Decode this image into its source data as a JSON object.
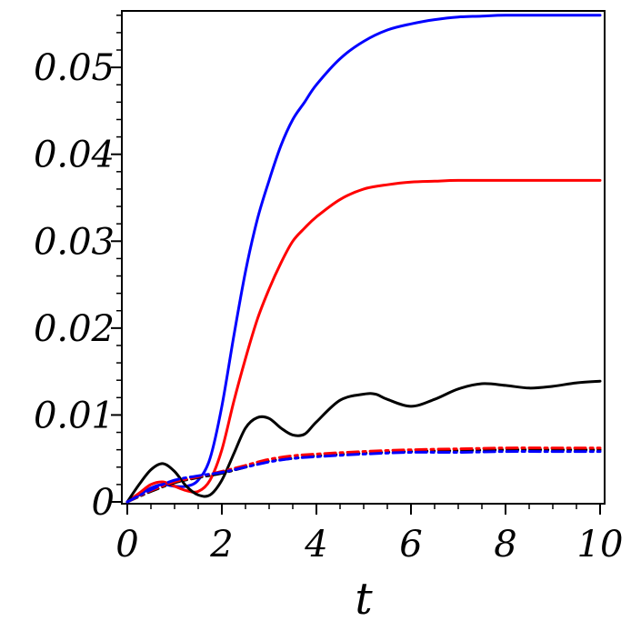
{
  "chart_data": {
    "type": "line",
    "title": "",
    "xlabel": "t",
    "ylabel": "",
    "xlim": [
      0,
      10
    ],
    "ylim": [
      0,
      0.0565
    ],
    "xticks": [
      0,
      2,
      4,
      6,
      8,
      10
    ],
    "xtick_labels": [
      "0",
      "2",
      "4",
      "6",
      "8",
      "10"
    ],
    "yticks": [
      0,
      0.01,
      0.02,
      0.03,
      0.04,
      0.05
    ],
    "ytick_labels": [
      "0",
      "0.01",
      "0.02",
      "0.03",
      "0.04",
      "0.05"
    ],
    "grid": false,
    "legend": "none",
    "series": [
      {
        "color": "#0000ff",
        "style": "solid",
        "x": [
          0,
          0.25,
          0.5,
          0.75,
          1.0,
          1.25,
          1.5,
          1.75,
          2.0,
          2.25,
          2.5,
          2.75,
          3.0,
          3.25,
          3.5,
          3.75,
          4.0,
          4.5,
          5.0,
          5.5,
          6.0,
          6.5,
          7.0,
          7.5,
          8.0,
          9.0,
          10.0
        ],
        "y": [
          0,
          0.0008,
          0.0016,
          0.002,
          0.0018,
          0.0018,
          0.0025,
          0.005,
          0.011,
          0.019,
          0.0265,
          0.0325,
          0.037,
          0.041,
          0.044,
          0.046,
          0.048,
          0.051,
          0.053,
          0.0543,
          0.055,
          0.0555,
          0.0558,
          0.0559,
          0.056,
          0.056,
          0.056
        ]
      },
      {
        "color": "#ff0000",
        "style": "solid",
        "x": [
          0,
          0.25,
          0.5,
          0.75,
          1.0,
          1.25,
          1.5,
          1.75,
          2.0,
          2.25,
          2.5,
          2.75,
          3.0,
          3.25,
          3.5,
          3.75,
          4.0,
          4.5,
          5.0,
          5.5,
          6.0,
          6.5,
          7.0,
          8.0,
          9.0,
          10.0
        ],
        "y": [
          0,
          0.001,
          0.002,
          0.0023,
          0.0018,
          0.0013,
          0.0012,
          0.0025,
          0.006,
          0.0115,
          0.0165,
          0.021,
          0.0245,
          0.0275,
          0.03,
          0.0315,
          0.0328,
          0.0348,
          0.036,
          0.0365,
          0.0368,
          0.0369,
          0.037,
          0.037,
          0.037,
          0.037
        ]
      },
      {
        "color": "#000000",
        "style": "solid",
        "x": [
          0,
          0.25,
          0.5,
          0.75,
          1.0,
          1.25,
          1.5,
          1.75,
          2.0,
          2.25,
          2.5,
          2.75,
          3.0,
          3.25,
          3.5,
          3.75,
          4.0,
          4.5,
          5.0,
          5.25,
          5.5,
          6.0,
          6.5,
          7.0,
          7.5,
          8.0,
          8.5,
          9.0,
          9.5,
          10.0
        ],
        "y": [
          0,
          0.002,
          0.0037,
          0.0044,
          0.0035,
          0.0018,
          0.0008,
          0.0008,
          0.0025,
          0.0055,
          0.0085,
          0.0097,
          0.0096,
          0.0085,
          0.0077,
          0.0078,
          0.0092,
          0.0117,
          0.0124,
          0.0124,
          0.0118,
          0.011,
          0.0118,
          0.013,
          0.0136,
          0.0134,
          0.0131,
          0.0133,
          0.0137,
          0.0139
        ]
      },
      {
        "color": "#000000",
        "style": "dashdot",
        "x": [
          0,
          0.5,
          1.0,
          1.5,
          2.0,
          2.5,
          3.0,
          3.5,
          4.0,
          5.0,
          6.0,
          7.0,
          8.0,
          9.0,
          10.0
        ],
        "y": [
          0,
          0.0012,
          0.0022,
          0.0028,
          0.0033,
          0.004,
          0.0047,
          0.005,
          0.0053,
          0.0056,
          0.0058,
          0.0059,
          0.006,
          0.006,
          0.006
        ]
      },
      {
        "color": "#ff0000",
        "style": "dashdot",
        "x": [
          0,
          0.5,
          1.0,
          1.5,
          2.0,
          2.5,
          3.0,
          3.5,
          4.0,
          5.0,
          6.0,
          7.0,
          8.0,
          9.0,
          10.0
        ],
        "y": [
          0,
          0.0013,
          0.0023,
          0.0029,
          0.0035,
          0.0042,
          0.0049,
          0.0053,
          0.0055,
          0.0058,
          0.006,
          0.0061,
          0.0062,
          0.0062,
          0.0062
        ]
      },
      {
        "color": "#0000ff",
        "style": "dashdot",
        "x": [
          0,
          0.5,
          1.0,
          1.5,
          2.0,
          2.5,
          3.0,
          3.5,
          4.0,
          5.0,
          6.0,
          7.0,
          8.0,
          9.0,
          10.0
        ],
        "y": [
          0,
          0.0014,
          0.0025,
          0.003,
          0.0034,
          0.004,
          0.0046,
          0.005,
          0.0052,
          0.0055,
          0.0057,
          0.0057,
          0.0058,
          0.0058,
          0.0058
        ]
      }
    ]
  }
}
